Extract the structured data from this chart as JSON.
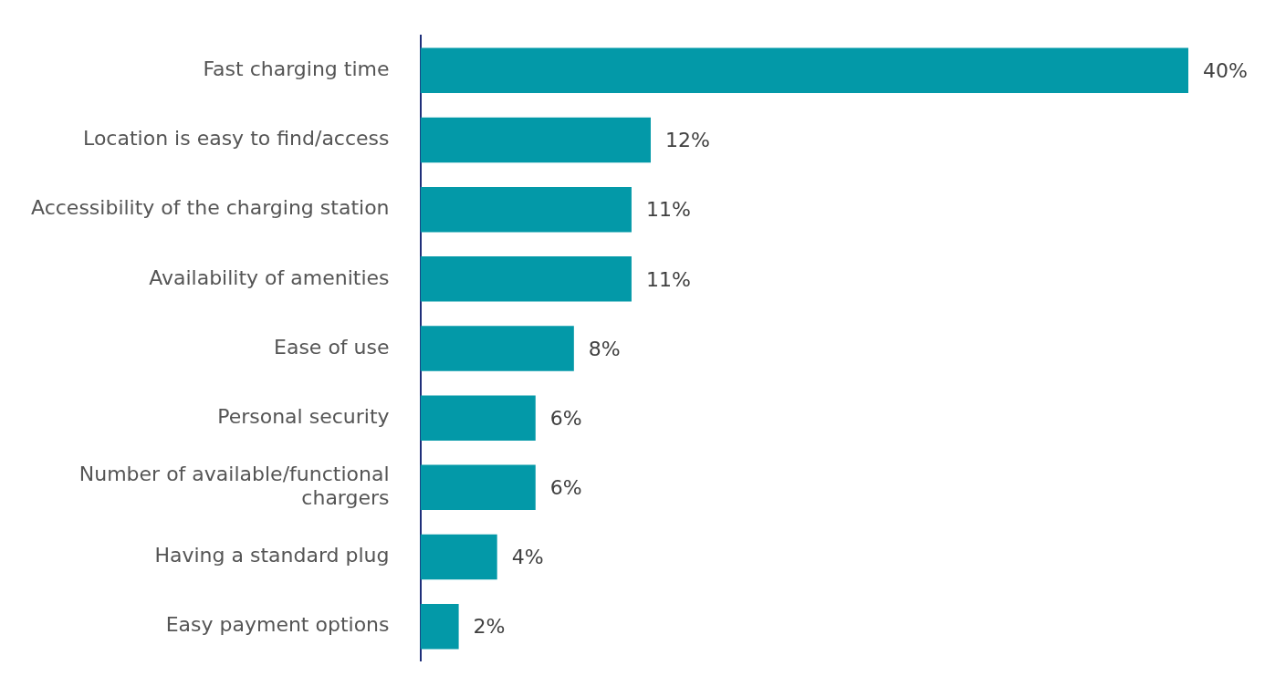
{
  "chart_data": {
    "type": "bar",
    "orientation": "horizontal",
    "categories": [
      "Fast charging time",
      "Location is easy to find/access",
      "Accessibility of the charging station",
      "Availability of amenities",
      "Ease of use",
      "Personal security",
      "Number of available/functional chargers",
      "Having a standard plug",
      "Easy payment options"
    ],
    "values": [
      40,
      12,
      11,
      11,
      8,
      6,
      6,
      4,
      2
    ],
    "value_labels": [
      "40%",
      "12%",
      "11%",
      "11%",
      "8%",
      "6%",
      "6%",
      "4%",
      "2%"
    ],
    "color": "#0399a8",
    "xlim": [
      0,
      40
    ],
    "tick_labels": "y"
  }
}
